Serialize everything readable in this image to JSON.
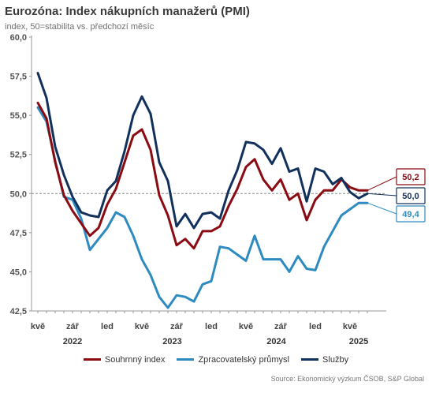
{
  "title": "Eurozóna: Index nákupních manažerů (PMI)",
  "subtitle": "index, 50=stabilita vs. předchozí měsíc",
  "source": "Source: Ekonomický výzkum ČSOB, S&P Global",
  "chart_data": {
    "type": "line",
    "ylim": [
      42.5,
      60.0
    ],
    "yticks": [
      "60,0",
      "57,5",
      "55,0",
      "52,5",
      "50,0",
      "47,5",
      "45,0",
      "42,5"
    ],
    "ytick_values": [
      60,
      57.5,
      55,
      52.5,
      50,
      47.5,
      45,
      42.5
    ],
    "reference_line": 50,
    "x_tick_labels": [
      "kvě",
      "zář",
      "led",
      "kvě",
      "zář",
      "led",
      "kvě",
      "zář",
      "led",
      "kvě"
    ],
    "x_tick_index": [
      0,
      4,
      8,
      12,
      16,
      20,
      24,
      28,
      32,
      36
    ],
    "year_labels": [
      "2022",
      "2023",
      "2024",
      "2025"
    ],
    "year_center_index": [
      4,
      15.5,
      27.5,
      37
    ],
    "grid": false,
    "legend_position": "bottom",
    "series": [
      {
        "name": "Souhrnný index",
        "color": "#8b0b13",
        "end_label": "50,2",
        "values": [
          55.8,
          54.8,
          52.0,
          49.9,
          48.9,
          48.1,
          47.3,
          47.8,
          49.3,
          50.3,
          52.0,
          53.7,
          54.1,
          52.8,
          49.9,
          48.6,
          46.7,
          47.1,
          46.5,
          47.6,
          47.6,
          47.9,
          49.2,
          50.3,
          51.7,
          52.2,
          50.9,
          50.2,
          50.9,
          49.6,
          50.0,
          48.3,
          49.6,
          50.2,
          50.2,
          50.9,
          50.4,
          50.2,
          50.2
        ]
      },
      {
        "name": "Zpracovatelský průmysl",
        "color": "#2e8bc0",
        "end_label": "49,4",
        "values": [
          55.5,
          54.6,
          52.1,
          49.8,
          49.6,
          48.4,
          46.4,
          47.1,
          47.8,
          48.8,
          48.5,
          47.3,
          45.8,
          44.8,
          43.4,
          42.7,
          43.5,
          43.4,
          43.1,
          44.2,
          44.4,
          46.6,
          46.5,
          46.1,
          45.7,
          47.3,
          45.8,
          45.8,
          45.8,
          45.0,
          46.0,
          45.2,
          45.1,
          46.6,
          47.6,
          48.6,
          49.0,
          49.4,
          49.4
        ]
      },
      {
        "name": "Služby",
        "color": "#11315c",
        "end_label": "50,0",
        "values": [
          57.7,
          56.1,
          53.0,
          51.2,
          49.8,
          48.8,
          48.6,
          48.5,
          50.2,
          50.8,
          52.7,
          55.0,
          56.2,
          55.1,
          52.0,
          50.8,
          47.9,
          48.7,
          47.8,
          48.7,
          48.8,
          48.4,
          50.2,
          51.5,
          53.3,
          53.2,
          52.8,
          51.9,
          52.9,
          51.4,
          51.6,
          49.5,
          51.6,
          51.4,
          50.6,
          51.0,
          50.1,
          49.7,
          50.0
        ]
      }
    ]
  }
}
